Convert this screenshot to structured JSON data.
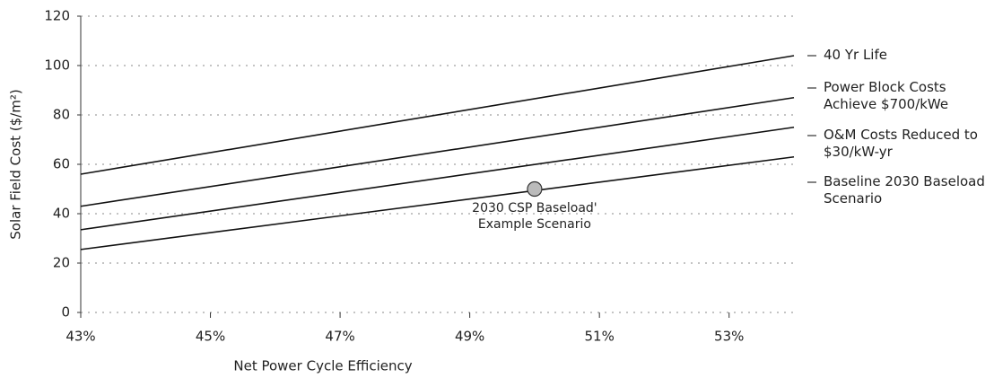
{
  "chart_data": {
    "type": "line",
    "xlabel": "Net Power Cycle Efficiency",
    "ylabel": "Solar Field Cost ($/m²)",
    "x": [
      43,
      54
    ],
    "xlim": [
      43,
      54
    ],
    "xticks": [
      {
        "value": 43,
        "label": "43%"
      },
      {
        "value": 45,
        "label": "45%"
      },
      {
        "value": 47,
        "label": "47%"
      },
      {
        "value": 49,
        "label": "49%"
      },
      {
        "value": 51,
        "label": "51%"
      },
      {
        "value": 53,
        "label": "53%"
      }
    ],
    "ylim": [
      0,
      120
    ],
    "yticks": [
      0,
      20,
      40,
      60,
      80,
      100,
      120
    ],
    "grid": true,
    "series": [
      {
        "name": "40 Yr Life",
        "color": "#111111",
        "values": [
          56,
          104
        ]
      },
      {
        "name": "Power Block Costs Achieve $700/kWe",
        "color": "#111111",
        "values": [
          43,
          87
        ]
      },
      {
        "name": "O&M Costs Reduced to $30/kW-yr",
        "color": "#111111",
        "values": [
          33.5,
          75
        ]
      },
      {
        "name": "Baseline 2030 Baseload Scenario",
        "color": "#111111",
        "values": [
          25.5,
          63
        ]
      }
    ],
    "annotation": {
      "text": "2030 CSP Baseload' Example Scenario",
      "x": 50,
      "y": 50
    }
  }
}
